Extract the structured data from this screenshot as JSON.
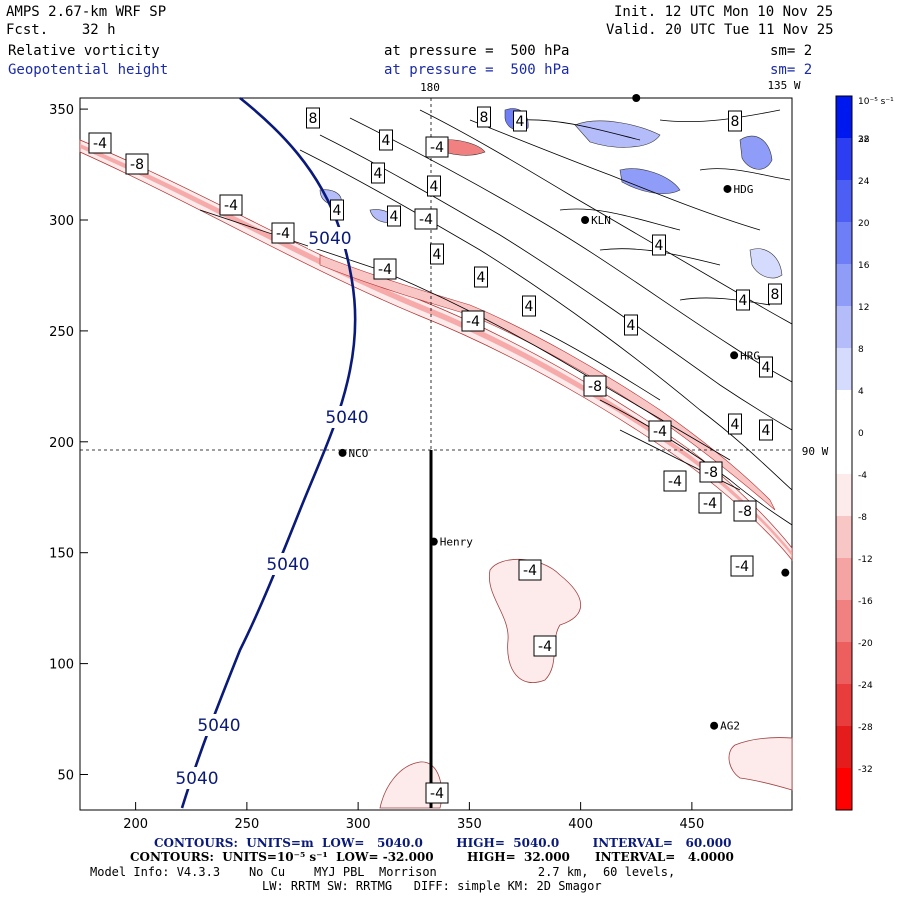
{
  "header": {
    "model": "AMPS 2.67-km WRF SP",
    "forecast": "Fcst.    32 h",
    "init": "Init. 12 UTC Mon 10 Nov 25",
    "valid": "Valid. 20 UTC Tue 11 Nov 25",
    "field1_name": "Relative vorticity",
    "field1_pressure": "at pressure =  500 hPa",
    "field1_sm": "sm= 2",
    "field2_name": "Geopotential height",
    "field2_pressure": "at pressure =  500 hPa",
    "field2_sm": "sm= 2"
  },
  "map_labels": {
    "lon_180": "180",
    "lon_135w": "135 W",
    "lon_90w": "90 W"
  },
  "stations": [
    {
      "name": "NCO",
      "x": 293,
      "y": 195
    },
    {
      "name": "Henry",
      "x": 334,
      "y": 155
    },
    {
      "name": "KLN",
      "x": 402,
      "y": 300
    },
    {
      "name": "HDG",
      "x": 466,
      "y": 314
    },
    {
      "name": "HRG",
      "x": 469,
      "y": 239
    },
    {
      "name": "AG2",
      "x": 460,
      "y": 72
    },
    {
      "name": "",
      "x": 492,
      "y": 141
    },
    {
      "name": "",
      "x": 425,
      "y": 355
    }
  ],
  "axes": {
    "x_ticks": [
      "200",
      "250",
      "300",
      "350",
      "400",
      "450"
    ],
    "y_ticks": [
      "50",
      "100",
      "150",
      "200",
      "250",
      "300",
      "350"
    ],
    "x_range": [
      175,
      495
    ],
    "y_range": [
      34,
      355
    ]
  },
  "colorbar": {
    "unit_label": "10⁻⁵ s⁻¹",
    "levels": [
      "32",
      "28",
      "24",
      "20",
      "16",
      "12",
      "8",
      "4",
      "0",
      "-4",
      "-8",
      "-12",
      "-16",
      "-20",
      "-24",
      "-28",
      "-32"
    ],
    "colors": [
      "#0018f0",
      "#2d3ef2",
      "#4d5ef4",
      "#6d7ef6",
      "#8f9df8",
      "#b4bcfa",
      "#d5dbfd",
      "#ffffff",
      "#ffffff",
      "#fdeaea",
      "#f9c6c6",
      "#f5a3a3",
      "#f18080",
      "#ed5e5e",
      "#e93c3c",
      "#e51c1c",
      "#ff0000"
    ]
  },
  "height_contours": {
    "value_label": "5040",
    "color": "#0a1a7a"
  },
  "vorticity_labels": [
    "-4",
    "-8",
    "4",
    "8"
  ],
  "footer": {
    "line1": "CONTOURS:  UNITS=m  LOW=   5040.0        HIGH=  5040.0        INTERVAL=   60.000",
    "line2": "CONTOURS:  UNITS=10⁻⁵ s⁻¹  LOW= -32.000        HIGH=  32.000      INTERVAL=   4.0000",
    "line3": "Model Info: V4.3.3    No Cu    MYJ PBL  Morrison              2.7 km,  60 levels,",
    "line4": "LW: RRTM SW: RRTMG   DIFF: simple KM: 2D Smagor"
  }
}
